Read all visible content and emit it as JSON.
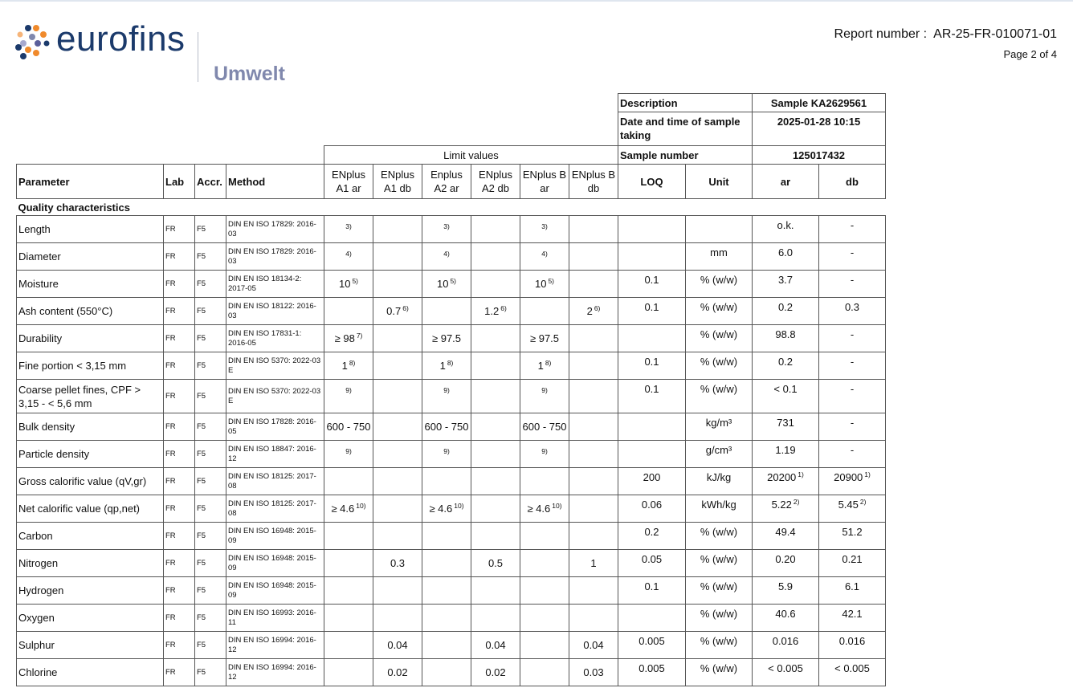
{
  "brand": {
    "name": "eurofins",
    "division": "Umwelt",
    "colors": {
      "navy": "#1b3a6b",
      "orange": "#f08a2c",
      "lilac": "#8088ad"
    }
  },
  "report": {
    "label": "Report number :",
    "number": "AR-25-FR-010071-01",
    "page": "Page 2 of 4"
  },
  "sample": {
    "description_label": "Description",
    "description": "Sample KA2629561",
    "date_label": "Date and time of sample taking",
    "date": "2025-01-28 10:15",
    "number_label": "Sample number",
    "number": "125017432"
  },
  "limit_values_label": "Limit values",
  "headers": [
    "Parameter",
    "Lab",
    "Accr.",
    "Method",
    "ENplus A1 ar",
    "ENplus A1 db",
    "Enplus A2 ar",
    "ENplus A2 db",
    "ENplus B ar",
    "ENplus B db",
    "LOQ",
    "Unit",
    "ar",
    "db"
  ],
  "section": "Quality characteristics",
  "rows": [
    {
      "p": "Length",
      "lab": "FR",
      "accr": "F5",
      "m": "DIN EN ISO 17829: 2016-03",
      "lim": [
        [
          "",
          "3)"
        ],
        [
          "",
          ""
        ],
        [
          "",
          "3)"
        ],
        [
          "",
          ""
        ],
        [
          "",
          "3)"
        ],
        [
          "",
          ""
        ]
      ],
      "loq": "",
      "unit": "",
      "ar": [
        "o.k.",
        ""
      ],
      "db": [
        "-",
        ""
      ]
    },
    {
      "p": "Diameter",
      "lab": "FR",
      "accr": "F5",
      "m": "DIN EN ISO 17829: 2016-03",
      "lim": [
        [
          "",
          "4)"
        ],
        [
          "",
          ""
        ],
        [
          "",
          "4)"
        ],
        [
          "",
          ""
        ],
        [
          "",
          "4)"
        ],
        [
          "",
          ""
        ]
      ],
      "loq": "",
      "unit": "mm",
      "ar": [
        "6.0",
        ""
      ],
      "db": [
        "-",
        ""
      ]
    },
    {
      "p": "Moisture",
      "lab": "FR",
      "accr": "F5",
      "m": "DIN EN ISO 18134-2: 2017-05",
      "lim": [
        [
          "10",
          "5)"
        ],
        [
          "",
          ""
        ],
        [
          "10",
          "5)"
        ],
        [
          "",
          ""
        ],
        [
          "10",
          "5)"
        ],
        [
          "",
          ""
        ]
      ],
      "loq": "0.1",
      "unit": "% (w/w)",
      "ar": [
        "3.7",
        ""
      ],
      "db": [
        "-",
        ""
      ]
    },
    {
      "p": "Ash content (550°C)",
      "lab": "FR",
      "accr": "F5",
      "m": "DIN EN ISO 18122: 2016-03",
      "lim": [
        [
          "",
          ""
        ],
        [
          "0.7",
          "6)"
        ],
        [
          "",
          ""
        ],
        [
          "1.2",
          "6)"
        ],
        [
          "",
          ""
        ],
        [
          "2",
          "6)"
        ]
      ],
      "loq": "0.1",
      "unit": "% (w/w)",
      "ar": [
        "0.2",
        ""
      ],
      "db": [
        "0.3",
        ""
      ]
    },
    {
      "p": "Durability",
      "lab": "FR",
      "accr": "F5",
      "m": "DIN EN ISO 17831-1: 2016-05",
      "lim": [
        [
          "≥ 98",
          "7)"
        ],
        [
          "",
          ""
        ],
        [
          "≥ 97.5",
          ""
        ],
        [
          "",
          ""
        ],
        [
          "≥ 97.5",
          ""
        ],
        [
          "",
          ""
        ]
      ],
      "loq": "",
      "unit": "% (w/w)",
      "ar": [
        "98.8",
        ""
      ],
      "db": [
        "-",
        ""
      ]
    },
    {
      "p": "Fine portion < 3,15 mm",
      "lab": "FR",
      "accr": "F5",
      "m": "DIN EN ISO 5370: 2022-03 E",
      "lim": [
        [
          "1",
          "8)"
        ],
        [
          "",
          ""
        ],
        [
          "1",
          "8)"
        ],
        [
          "",
          ""
        ],
        [
          "1",
          "8)"
        ],
        [
          "",
          ""
        ]
      ],
      "loq": "0.1",
      "unit": "% (w/w)",
      "ar": [
        "0.2",
        ""
      ],
      "db": [
        "-",
        ""
      ]
    },
    {
      "p": "Coarse pellet fines, CPF > 3,15 - < 5,6 mm",
      "lab": "FR",
      "accr": "F5",
      "m": "DIN EN ISO 5370: 2022-03 E",
      "lim": [
        [
          "",
          "9)"
        ],
        [
          "",
          ""
        ],
        [
          "",
          "9)"
        ],
        [
          "",
          ""
        ],
        [
          "",
          "9)"
        ],
        [
          "",
          ""
        ]
      ],
      "loq": "0.1",
      "unit": "% (w/w)",
      "ar": [
        "< 0.1",
        ""
      ],
      "db": [
        "-",
        ""
      ]
    },
    {
      "p": "Bulk density",
      "lab": "FR",
      "accr": "F5",
      "m": "DIN EN ISO 17828: 2016-05",
      "lim": [
        [
          "600 - 750",
          ""
        ],
        [
          "",
          ""
        ],
        [
          "600 - 750",
          ""
        ],
        [
          "",
          ""
        ],
        [
          "600 - 750",
          ""
        ],
        [
          "",
          ""
        ]
      ],
      "loq": "",
      "unit": "kg/m³",
      "ar": [
        "731",
        ""
      ],
      "db": [
        "-",
        ""
      ]
    },
    {
      "p": "Particle density",
      "lab": "FR",
      "accr": "F5",
      "m": "DIN EN ISO 18847: 2016-12",
      "lim": [
        [
          "",
          "9)"
        ],
        [
          "",
          ""
        ],
        [
          "",
          "9)"
        ],
        [
          "",
          ""
        ],
        [
          "",
          "9)"
        ],
        [
          "",
          ""
        ]
      ],
      "loq": "",
      "unit": "g/cm³",
      "ar": [
        "1.19",
        ""
      ],
      "db": [
        "-",
        ""
      ]
    },
    {
      "p": "Gross calorific value (qV,gr)",
      "lab": "FR",
      "accr": "F5",
      "m": "DIN EN ISO 18125: 2017-08",
      "lim": [
        [
          "",
          ""
        ],
        [
          "",
          ""
        ],
        [
          "",
          ""
        ],
        [
          "",
          ""
        ],
        [
          "",
          ""
        ],
        [
          "",
          ""
        ]
      ],
      "loq": "200",
      "unit": "kJ/kg",
      "ar": [
        "20200",
        "1)"
      ],
      "db": [
        "20900",
        "1)"
      ]
    },
    {
      "p": "Net calorific value (qp,net)",
      "lab": "FR",
      "accr": "F5",
      "m": "DIN EN ISO 18125: 2017-08",
      "lim": [
        [
          "≥ 4.6",
          "10)"
        ],
        [
          "",
          ""
        ],
        [
          "≥ 4.6",
          "10)"
        ],
        [
          "",
          ""
        ],
        [
          "≥ 4.6",
          "10)"
        ],
        [
          "",
          ""
        ]
      ],
      "loq": "0.06",
      "unit": "kWh/kg",
      "ar": [
        "5.22",
        "2)"
      ],
      "db": [
        "5.45",
        "2)"
      ]
    },
    {
      "p": "Carbon",
      "lab": "FR",
      "accr": "F5",
      "m": "DIN EN ISO 16948: 2015-09",
      "lim": [
        [
          "",
          ""
        ],
        [
          "",
          ""
        ],
        [
          "",
          ""
        ],
        [
          "",
          ""
        ],
        [
          "",
          ""
        ],
        [
          "",
          ""
        ]
      ],
      "loq": "0.2",
      "unit": "% (w/w)",
      "ar": [
        "49.4",
        ""
      ],
      "db": [
        "51.2",
        ""
      ]
    },
    {
      "p": "Nitrogen",
      "lab": "FR",
      "accr": "F5",
      "m": "DIN EN ISO 16948: 2015-09",
      "lim": [
        [
          "",
          ""
        ],
        [
          "0.3",
          ""
        ],
        [
          "",
          ""
        ],
        [
          "0.5",
          ""
        ],
        [
          "",
          ""
        ],
        [
          "1",
          ""
        ]
      ],
      "loq": "0.05",
      "unit": "% (w/w)",
      "ar": [
        "0.20",
        ""
      ],
      "db": [
        "0.21",
        ""
      ]
    },
    {
      "p": "Hydrogen",
      "lab": "FR",
      "accr": "F5",
      "m": "DIN EN ISO 16948: 2015-09",
      "lim": [
        [
          "",
          ""
        ],
        [
          "",
          ""
        ],
        [
          "",
          ""
        ],
        [
          "",
          ""
        ],
        [
          "",
          ""
        ],
        [
          "",
          ""
        ]
      ],
      "loq": "0.1",
      "unit": "% (w/w)",
      "ar": [
        "5.9",
        ""
      ],
      "db": [
        "6.1",
        ""
      ]
    },
    {
      "p": "Oxygen",
      "lab": "FR",
      "accr": "F5",
      "m": "DIN EN ISO 16993: 2016-11",
      "lim": [
        [
          "",
          ""
        ],
        [
          "",
          ""
        ],
        [
          "",
          ""
        ],
        [
          "",
          ""
        ],
        [
          "",
          ""
        ],
        [
          "",
          ""
        ]
      ],
      "loq": "",
      "unit": "% (w/w)",
      "ar": [
        "40.6",
        ""
      ],
      "db": [
        "42.1",
        ""
      ]
    },
    {
      "p": "Sulphur",
      "lab": "FR",
      "accr": "F5",
      "m": "DIN EN ISO 16994: 2016-12",
      "lim": [
        [
          "",
          ""
        ],
        [
          "0.04",
          ""
        ],
        [
          "",
          ""
        ],
        [
          "0.04",
          ""
        ],
        [
          "",
          ""
        ],
        [
          "0.04",
          ""
        ]
      ],
      "loq": "0.005",
      "unit": "% (w/w)",
      "ar": [
        "0.016",
        ""
      ],
      "db": [
        "0.016",
        ""
      ]
    },
    {
      "p": "Chlorine",
      "lab": "FR",
      "accr": "F5",
      "m": "DIN EN ISO 16994: 2016-12",
      "lim": [
        [
          "",
          ""
        ],
        [
          "0.02",
          ""
        ],
        [
          "",
          ""
        ],
        [
          "0.02",
          ""
        ],
        [
          "",
          ""
        ],
        [
          "0.03",
          ""
        ]
      ],
      "loq": "0.005",
      "unit": "% (w/w)",
      "ar": [
        "< 0.005",
        ""
      ],
      "db": [
        "< 0.005",
        ""
      ]
    }
  ]
}
